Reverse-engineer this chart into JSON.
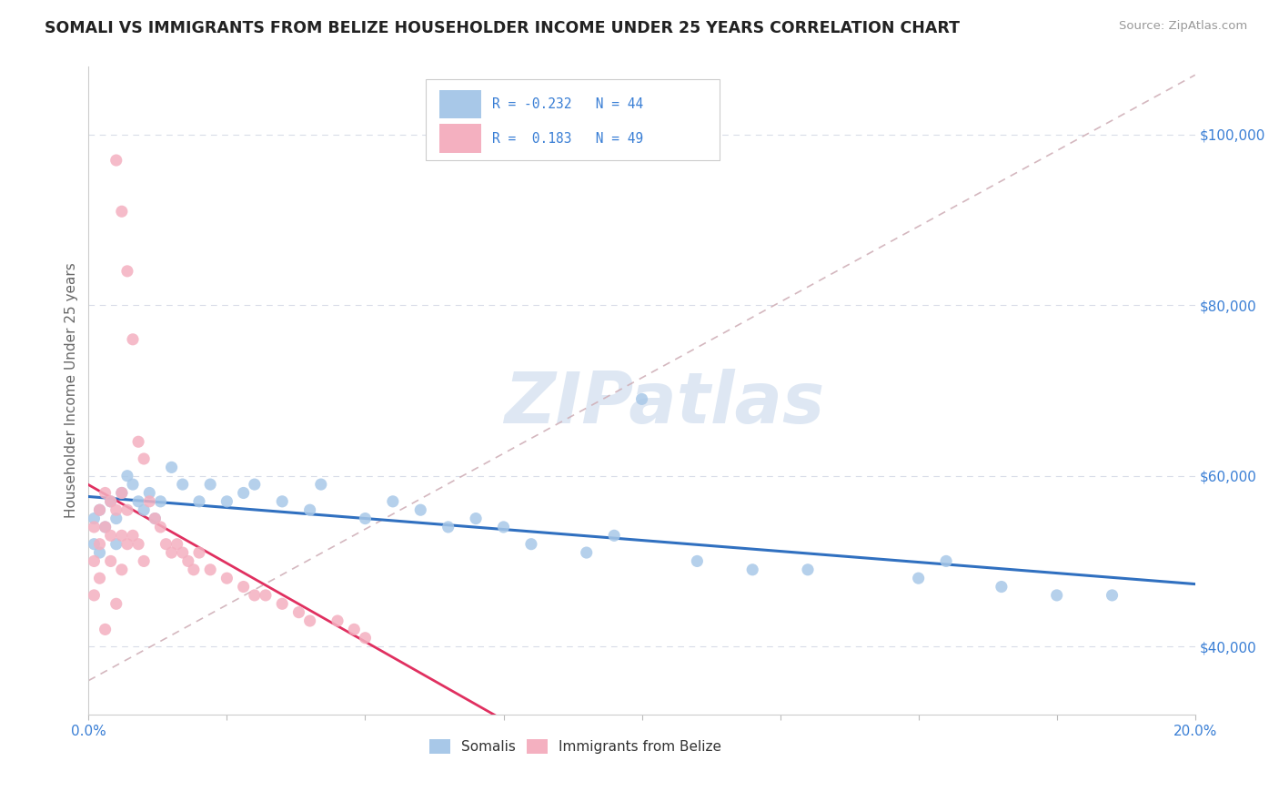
{
  "title": "SOMALI VS IMMIGRANTS FROM BELIZE HOUSEHOLDER INCOME UNDER 25 YEARS CORRELATION CHART",
  "source": "Source: ZipAtlas.com",
  "ylabel": "Householder Income Under 25 years",
  "xlim": [
    0.0,
    0.2
  ],
  "ylim": [
    32000,
    108000
  ],
  "yticks": [
    40000,
    60000,
    80000,
    100000
  ],
  "ytick_labels": [
    "$40,000",
    "$60,000",
    "$80,000",
    "$100,000"
  ],
  "xtick_positions": [
    0.0,
    0.025,
    0.05,
    0.075,
    0.1,
    0.125,
    0.15,
    0.175,
    0.2
  ],
  "xtick_labels": [
    "0.0%",
    "",
    "",
    "",
    "",
    "",
    "",
    "",
    "20.0%"
  ],
  "somali_color": "#a8c8e8",
  "belize_color": "#f4b0c0",
  "somali_line_color": "#3070c0",
  "belize_line_color": "#e03060",
  "dashed_line_color": "#d0b0b8",
  "grid_color": "#d8dce8",
  "watermark_color": "#c8d8ec",
  "somali_x": [
    0.001,
    0.001,
    0.002,
    0.002,
    0.003,
    0.004,
    0.005,
    0.005,
    0.006,
    0.007,
    0.008,
    0.009,
    0.01,
    0.011,
    0.012,
    0.013,
    0.015,
    0.017,
    0.02,
    0.022,
    0.025,
    0.028,
    0.03,
    0.035,
    0.04,
    0.042,
    0.05,
    0.055,
    0.06,
    0.065,
    0.07,
    0.075,
    0.08,
    0.09,
    0.095,
    0.1,
    0.11,
    0.12,
    0.13,
    0.15,
    0.155,
    0.165,
    0.175,
    0.185
  ],
  "somali_y": [
    55000,
    52000,
    56000,
    51000,
    54000,
    57000,
    55000,
    52000,
    58000,
    60000,
    59000,
    57000,
    56000,
    58000,
    55000,
    57000,
    61000,
    59000,
    57000,
    59000,
    57000,
    58000,
    59000,
    57000,
    56000,
    59000,
    55000,
    57000,
    56000,
    54000,
    55000,
    54000,
    52000,
    51000,
    53000,
    69000,
    50000,
    49000,
    49000,
    48000,
    50000,
    47000,
    46000,
    46000
  ],
  "belize_x": [
    0.001,
    0.001,
    0.001,
    0.002,
    0.002,
    0.002,
    0.003,
    0.003,
    0.003,
    0.004,
    0.004,
    0.004,
    0.005,
    0.005,
    0.005,
    0.006,
    0.006,
    0.006,
    0.006,
    0.007,
    0.007,
    0.007,
    0.008,
    0.008,
    0.009,
    0.009,
    0.01,
    0.01,
    0.011,
    0.012,
    0.013,
    0.014,
    0.015,
    0.016,
    0.017,
    0.018,
    0.019,
    0.02,
    0.022,
    0.025,
    0.028,
    0.03,
    0.032,
    0.035,
    0.038,
    0.04,
    0.045,
    0.048,
    0.05
  ],
  "belize_y": [
    54000,
    50000,
    46000,
    56000,
    52000,
    48000,
    58000,
    54000,
    42000,
    57000,
    53000,
    50000,
    97000,
    56000,
    45000,
    91000,
    58000,
    53000,
    49000,
    84000,
    56000,
    52000,
    76000,
    53000,
    64000,
    52000,
    62000,
    50000,
    57000,
    55000,
    54000,
    52000,
    51000,
    52000,
    51000,
    50000,
    49000,
    51000,
    49000,
    48000,
    47000,
    46000,
    46000,
    45000,
    44000,
    43000,
    43000,
    42000,
    41000
  ]
}
